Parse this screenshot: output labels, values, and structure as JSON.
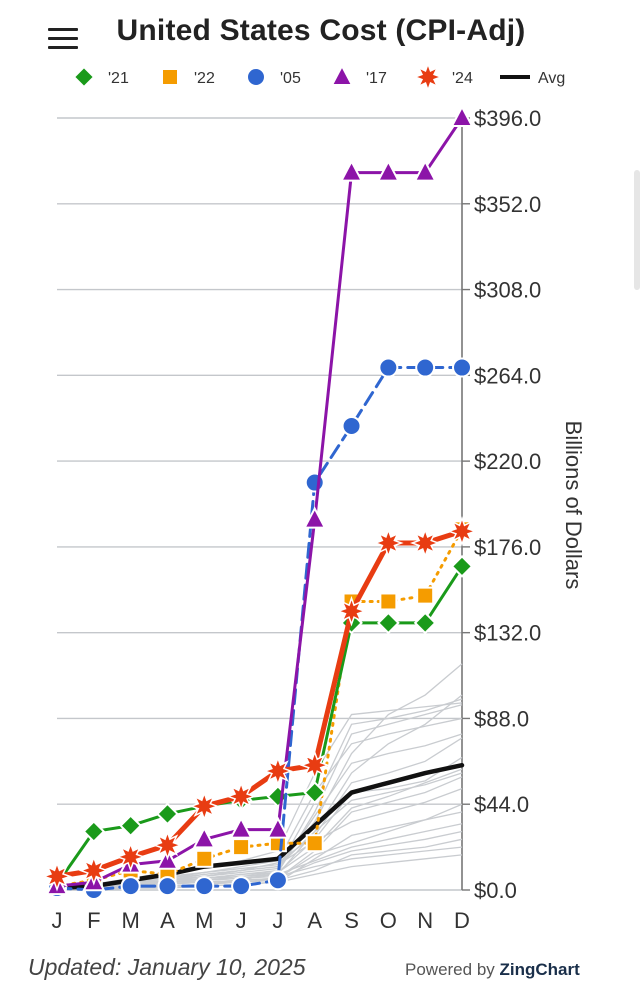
{
  "header": {
    "title": "United States Cost (CPI-Adj)",
    "menu_icon": "hamburger-icon"
  },
  "footer": {
    "updated": "Updated: January 10, 2025",
    "powered_prefix": "Powered by ",
    "powered_brand": "ZingChart"
  },
  "chart_data": {
    "type": "line",
    "title": "United States Cost (CPI-Adj)",
    "ylabel": "Billions of Dollars",
    "xlabel": "",
    "categories": [
      "J",
      "F",
      "M",
      "A",
      "M",
      "J",
      "J",
      "A",
      "S",
      "O",
      "N",
      "D"
    ],
    "ylim": [
      0,
      396
    ],
    "yticks": [
      "$0.0",
      "$44.0",
      "$88.0",
      "$132.0",
      "$176.0",
      "$220.0",
      "$264.0",
      "$308.0",
      "$352.0",
      "$396.0"
    ],
    "ytick_values": [
      0,
      44,
      88,
      132,
      176,
      220,
      264,
      308,
      352,
      396
    ],
    "legend_position": "top",
    "grid": true,
    "series": [
      {
        "name": "'21",
        "color": "#1a9a1a",
        "marker": "diamond",
        "dash": "solid",
        "values": [
          3,
          30,
          33,
          39,
          43,
          46,
          48,
          50,
          137,
          137,
          137,
          166
        ]
      },
      {
        "name": "'22",
        "color": "#f59c00",
        "marker": "square",
        "dash": "dotted",
        "values": [
          2,
          5,
          10,
          8,
          16,
          22,
          24,
          24,
          148,
          148,
          151,
          185
        ]
      },
      {
        "name": "'05",
        "color": "#2f66d0",
        "marker": "circle",
        "dash": "dashed",
        "values": [
          1,
          0,
          2,
          2,
          2,
          2,
          5,
          209,
          238,
          268,
          268,
          268
        ]
      },
      {
        "name": "'17",
        "color": "#8c14a8",
        "marker": "triangle",
        "dash": "solid",
        "values": [
          2,
          4,
          13,
          15,
          26,
          31,
          31,
          190,
          368,
          368,
          368,
          396
        ]
      },
      {
        "name": "'24",
        "color": "#e83c12",
        "marker": "star",
        "dash": "solid",
        "values": [
          7,
          10,
          17,
          23,
          43,
          48,
          61,
          64,
          143,
          178,
          178,
          184
        ]
      },
      {
        "name": "Avg",
        "color": "#111111",
        "marker": "none",
        "dash": "solid",
        "values": [
          1,
          2,
          5,
          8,
          12,
          14,
          16,
          33,
          50,
          55,
          60,
          64
        ]
      }
    ],
    "background_series_color": "#c9ccd0",
    "background_series": [
      [
        0,
        1,
        2,
        3,
        4,
        5,
        6,
        20,
        40,
        45,
        50,
        58
      ],
      [
        0,
        2,
        3,
        4,
        6,
        7,
        8,
        30,
        60,
        75,
        85,
        100
      ],
      [
        0,
        1,
        1,
        2,
        3,
        5,
        9,
        40,
        80,
        85,
        90,
        95
      ],
      [
        1,
        3,
        5,
        7,
        9,
        11,
        13,
        25,
        35,
        40,
        45,
        52
      ],
      [
        0,
        0,
        1,
        2,
        3,
        4,
        6,
        18,
        24,
        30,
        36,
        44
      ],
      [
        0,
        1,
        2,
        5,
        8,
        10,
        12,
        35,
        70,
        90,
        100,
        116
      ],
      [
        0,
        2,
        4,
        6,
        8,
        10,
        14,
        28,
        55,
        60,
        66,
        78
      ],
      [
        0,
        1,
        3,
        4,
        5,
        6,
        8,
        15,
        22,
        26,
        30,
        34
      ],
      [
        0,
        1,
        2,
        2,
        3,
        4,
        5,
        10,
        18,
        20,
        22,
        26
      ],
      [
        0,
        2,
        4,
        5,
        7,
        9,
        11,
        45,
        85,
        88,
        92,
        98
      ],
      [
        1,
        2,
        3,
        4,
        5,
        6,
        7,
        12,
        16,
        18,
        20,
        22
      ],
      [
        0,
        1,
        2,
        3,
        5,
        7,
        9,
        22,
        42,
        48,
        55,
        62
      ],
      [
        0,
        0,
        1,
        1,
        2,
        3,
        4,
        8,
        12,
        14,
        16,
        18
      ],
      [
        0,
        3,
        6,
        9,
        12,
        15,
        20,
        60,
        90,
        92,
        94,
        96
      ],
      [
        0,
        1,
        2,
        4,
        6,
        8,
        10,
        38,
        65,
        70,
        74,
        80
      ],
      [
        0,
        2,
        3,
        5,
        6,
        8,
        9,
        26,
        50,
        52,
        56,
        68
      ],
      [
        0,
        1,
        1,
        2,
        2,
        3,
        4,
        16,
        28,
        32,
        36,
        40
      ],
      [
        0,
        2,
        4,
        6,
        9,
        12,
        15,
        50,
        75,
        80,
        84,
        88
      ],
      [
        0,
        1,
        2,
        3,
        4,
        5,
        6,
        14,
        20,
        23,
        26,
        30
      ],
      [
        0,
        1,
        3,
        5,
        7,
        10,
        12,
        30,
        46,
        50,
        54,
        60
      ]
    ]
  }
}
